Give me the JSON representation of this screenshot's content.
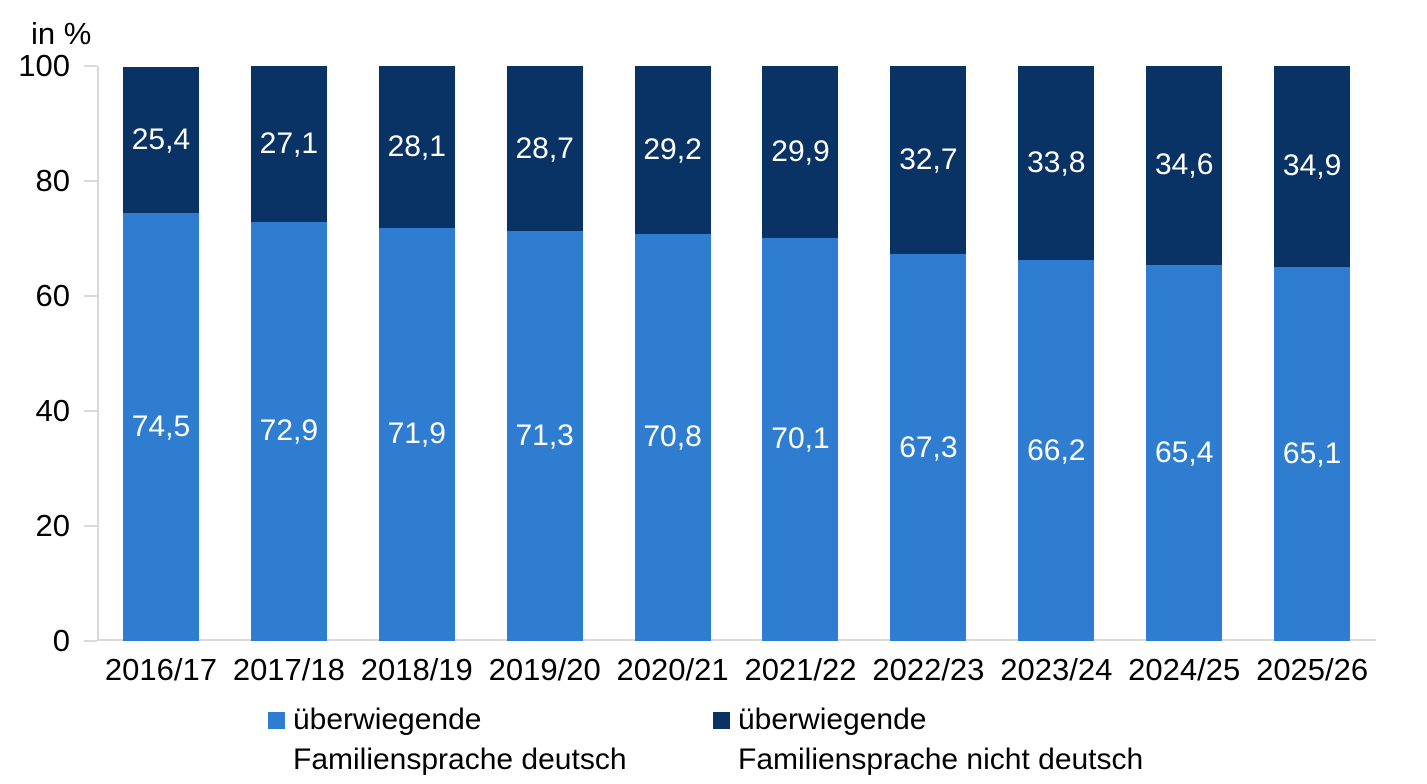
{
  "unit_label": "in %",
  "colors": {
    "series_deutsch": "#2f7dd1",
    "series_nicht_deutsch": "#0a3365",
    "axis_line": "#d9d9d9",
    "value_label_text": "#ffffff",
    "text": "#000000",
    "background": "#ffffff"
  },
  "legend": {
    "position": "bottom",
    "items": [
      {
        "name": "überwiegende Familiensprache deutsch",
        "lines": [
          "überwiegende",
          "Familiensprache deutsch"
        ],
        "color": "#2f7dd1"
      },
      {
        "name": "überwiegende Familiensprache nicht deutsch",
        "lines": [
          "überwiegende",
          "Familiensprache nicht deutsch"
        ],
        "color": "#0a3365"
      }
    ]
  },
  "chart_data": {
    "type": "bar",
    "stacked": true,
    "title": "",
    "ylabel": "in %",
    "xlabel": "",
    "categories": [
      "2016/17",
      "2017/18",
      "2018/19",
      "2019/20",
      "2020/21",
      "2021/22",
      "2022/23",
      "2023/24",
      "2024/25",
      "2025/26"
    ],
    "series": [
      {
        "name": "überwiegende Familiensprache deutsch",
        "color": "#2f7dd1",
        "values": [
          74.5,
          72.9,
          71.9,
          71.3,
          70.8,
          70.1,
          67.3,
          66.2,
          65.4,
          65.1
        ]
      },
      {
        "name": "überwiegende Familiensprache nicht deutsch",
        "color": "#0a3365",
        "values": [
          25.4,
          27.1,
          28.1,
          28.7,
          29.2,
          29.9,
          32.7,
          33.8,
          34.6,
          34.9
        ]
      }
    ],
    "ylim": [
      0,
      100
    ],
    "y_ticks": [
      0,
      20,
      40,
      60,
      80,
      100
    ],
    "grid": false,
    "legend_position": "bottom",
    "decimal_separator": ",",
    "value_labels": "inside-center"
  }
}
